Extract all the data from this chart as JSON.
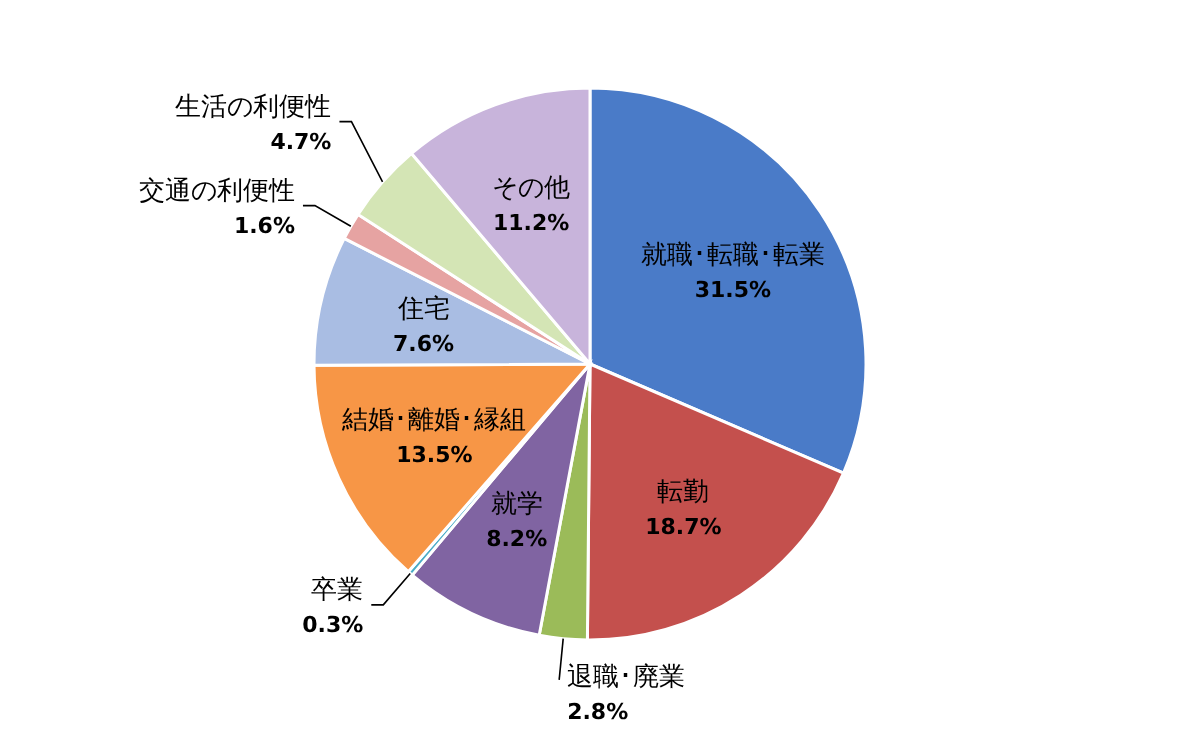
{
  "chart_data": {
    "type": "pie",
    "categories": [
      "就職･転職･転業",
      "転勤",
      "退職･廃業",
      "就学",
      "卒業",
      "結婚･離婚･縁組",
      "住宅",
      "交通の利便性",
      "生活の利便性",
      "その他"
    ],
    "values": [
      31.5,
      18.7,
      2.8,
      8.2,
      0.3,
      13.5,
      7.6,
      1.6,
      4.7,
      11.2
    ],
    "value_labels": [
      "31.5%",
      "18.7%",
      "2.8%",
      "8.2%",
      "0.3%",
      "13.5%",
      "7.6%",
      "1.6%",
      "4.7%",
      "11.2%"
    ],
    "colors": [
      "#4a7bc8",
      "#c4504d",
      "#9bbb59",
      "#8064a2",
      "#4bacc6",
      "#f79646",
      "#a9bde3",
      "#e6a3a2",
      "#d4e5b5",
      "#c8b4db"
    ]
  }
}
